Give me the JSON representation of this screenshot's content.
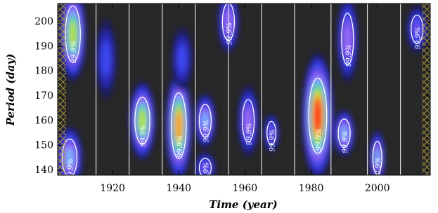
{
  "chart_data": {
    "type": "wavelet",
    "xlabel": "Time (year)",
    "ylabel": "Period (day)",
    "xlim": [
      1903.4,
      2016
    ],
    "ylim": [
      138,
      207.4
    ],
    "xticks": [
      1920,
      1940,
      1960,
      1980,
      2000
    ],
    "yticks": [
      140,
      150,
      160,
      170,
      180,
      190,
      200
    ],
    "background": "#282828",
    "colormap": [
      "#1c1c60",
      "#2a2ab8",
      "#3c46f0",
      "#6a50e8",
      "#9a6cf8",
      "#78b4ff",
      "#38d890",
      "#b4e428",
      "#ff9a20",
      "#ff2a1a"
    ],
    "contour_label": "99.9%",
    "minima": [
      1915,
      1925,
      1935,
      1945,
      1955,
      1965,
      1975,
      1986,
      1997,
      2007
    ],
    "blobs": [
      {
        "year": 1908,
        "period": 195,
        "power": 0.8,
        "wx": 2.5,
        "wy": 12,
        "contour": true
      },
      {
        "year": 1907,
        "period": 145,
        "power": 0.6,
        "wx": 2.5,
        "wy": 8,
        "contour": true
      },
      {
        "year": 1918,
        "period": 185,
        "power": 0.3,
        "wx": 2,
        "wy": 10,
        "contour": false
      },
      {
        "year": 1929,
        "period": 160,
        "power": 0.75,
        "wx": 2.5,
        "wy": 10,
        "contour": true
      },
      {
        "year": 1940,
        "period": 158,
        "power": 0.85,
        "wx": 2.5,
        "wy": 14,
        "contour": true
      },
      {
        "year": 1941,
        "period": 185,
        "power": 0.3,
        "wx": 2,
        "wy": 8,
        "contour": false
      },
      {
        "year": 1948,
        "period": 160,
        "power": 0.55,
        "wx": 2,
        "wy": 7,
        "contour": true
      },
      {
        "year": 1948,
        "period": 141,
        "power": 0.4,
        "wx": 2,
        "wy": 4,
        "contour": true
      },
      {
        "year": 1955,
        "period": 200,
        "power": 0.5,
        "wx": 2,
        "wy": 8,
        "contour": true
      },
      {
        "year": 1961,
        "period": 160,
        "power": 0.45,
        "wx": 2,
        "wy": 9,
        "contour": true
      },
      {
        "year": 1968,
        "period": 155,
        "power": 0.35,
        "wx": 1.5,
        "wy": 5,
        "contour": true
      },
      {
        "year": 1982,
        "period": 162,
        "power": 1.0,
        "wx": 3,
        "wy": 16,
        "contour": true
      },
      {
        "year": 1990,
        "period": 155,
        "power": 0.6,
        "wx": 2,
        "wy": 6,
        "contour": true
      },
      {
        "year": 1991,
        "period": 193,
        "power": 0.45,
        "wx": 2,
        "wy": 11,
        "contour": true
      },
      {
        "year": 2000,
        "period": 145,
        "power": 0.6,
        "wx": 1.5,
        "wy": 7,
        "contour": true
      },
      {
        "year": 2012,
        "period": 197,
        "power": 0.4,
        "wx": 2,
        "wy": 6,
        "contour": true
      }
    ]
  }
}
